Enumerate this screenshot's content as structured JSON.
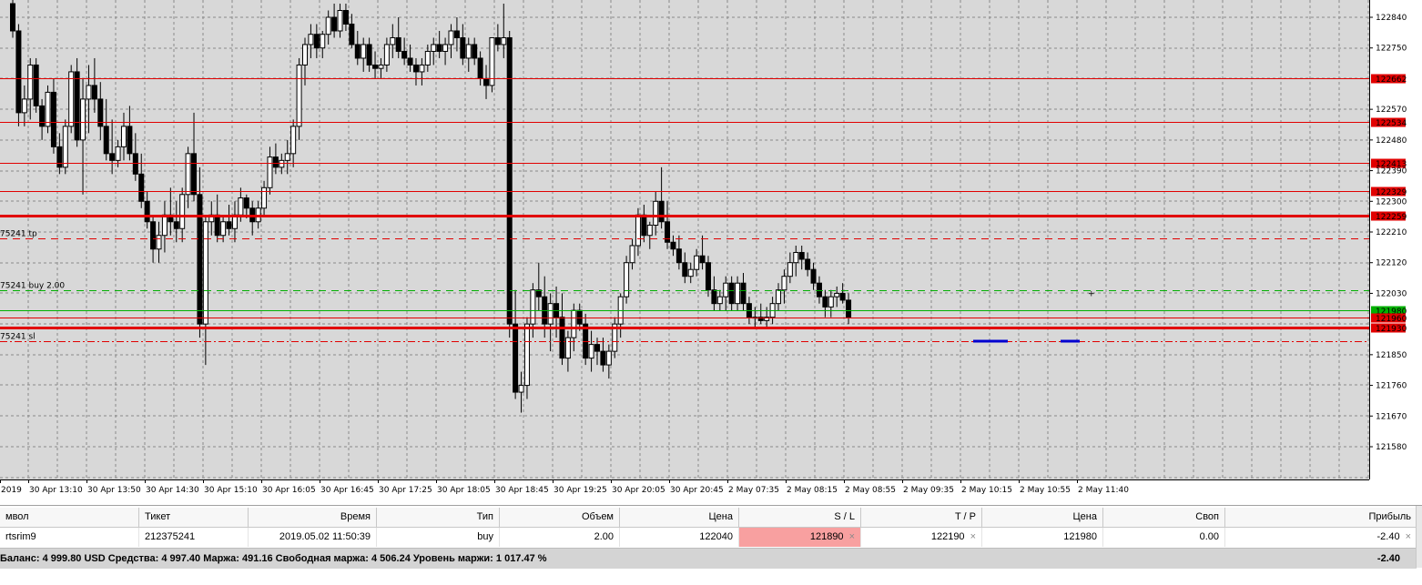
{
  "chart": {
    "background_color": "#d8d8d8",
    "price_axis_labels": [
      "122840",
      "122750",
      "122570",
      "122480",
      "122390",
      "122300",
      "122210",
      "122120",
      "122030",
      "121850",
      "121760",
      "121670",
      "121580"
    ],
    "hlines": [
      {
        "label": "122662",
        "color": "#e10000",
        "style": "solid",
        "weight": "thin",
        "price": 122662
      },
      {
        "label": "122534",
        "color": "#e10000",
        "style": "solid",
        "weight": "thin",
        "price": 122534
      },
      {
        "label": "122413",
        "color": "#e10000",
        "style": "solid",
        "weight": "thin",
        "price": 122413
      },
      {
        "label": "122329",
        "color": "#e10000",
        "style": "solid",
        "weight": "thin",
        "price": 122329
      },
      {
        "label": "122259",
        "color": "#e10000",
        "style": "solid",
        "weight": "thick",
        "price": 122259
      },
      {
        "label": "121980",
        "color": "#00b000",
        "style": "solid",
        "weight": "thin",
        "price": 121980
      },
      {
        "label": "121960",
        "color": "#e10000",
        "style": "solid",
        "weight": "thin",
        "price": 121960
      },
      {
        "label": "121930",
        "color": "#e10000",
        "style": "solid",
        "weight": "thick",
        "price": 121930
      }
    ],
    "order_lines": [
      {
        "text": "75241 tp",
        "color": "#e10000",
        "price": 122190
      },
      {
        "text": "75241 buy 2.00",
        "color": "#00b000",
        "price": 122040
      },
      {
        "text": "75241 sl",
        "color": "#e10000",
        "price": 121890
      }
    ],
    "time_labels": [
      "2019",
      "30 Apr 13:10",
      "30 Apr 13:50",
      "30 Apr 14:30",
      "30 Apr 15:10",
      "30 Apr 16:05",
      "30 Apr 16:45",
      "30 Apr 17:25",
      "30 Apr 18:05",
      "30 Apr 18:45",
      "30 Apr 19:25",
      "30 Apr 20:05",
      "30 Apr 20:45",
      "2 May 07:35",
      "2 May 08:15",
      "2 May 08:55",
      "2 May 09:35",
      "2 May 10:15",
      "2 May 10:55",
      "2 May 11:40"
    ],
    "candles": [
      [
        122880,
        122920,
        122780,
        122800
      ],
      [
        122800,
        122820,
        122520,
        122560
      ],
      [
        122560,
        122640,
        122520,
        122600
      ],
      [
        122600,
        122720,
        122540,
        122700
      ],
      [
        122700,
        122720,
        122560,
        122580
      ],
      [
        122580,
        122600,
        122480,
        122520
      ],
      [
        122520,
        122640,
        122500,
        122620
      ],
      [
        122620,
        122660,
        122440,
        122460
      ],
      [
        122460,
        122500,
        122380,
        122400
      ],
      [
        122400,
        122540,
        122380,
        122520
      ],
      [
        122520,
        122700,
        122500,
        122680
      ],
      [
        122680,
        122720,
        122460,
        122480
      ],
      [
        122480,
        122660,
        122320,
        122600
      ],
      [
        122600,
        122700,
        122500,
        122640
      ],
      [
        122640,
        122720,
        122560,
        122600
      ],
      [
        122600,
        122650,
        122480,
        122520
      ],
      [
        122520,
        122600,
        122420,
        122440
      ],
      [
        122440,
        122540,
        122380,
        122420
      ],
      [
        122420,
        122480,
        122400,
        122460
      ],
      [
        122460,
        122560,
        122420,
        122520
      ],
      [
        122520,
        122580,
        122420,
        122440
      ],
      [
        122440,
        122500,
        122360,
        122380
      ],
      [
        122380,
        122440,
        122280,
        122300
      ],
      [
        122300,
        122330,
        122220,
        122240
      ],
      [
        122240,
        122260,
        122120,
        122160
      ],
      [
        122160,
        122240,
        122120,
        122200
      ],
      [
        122200,
        122300,
        122150,
        122260
      ],
      [
        122260,
        122340,
        122200,
        122240
      ],
      [
        122240,
        122300,
        122180,
        122220
      ],
      [
        122220,
        122340,
        122180,
        122320
      ],
      [
        122320,
        122460,
        122280,
        122440
      ],
      [
        122440,
        122560,
        122300,
        122320
      ],
      [
        122320,
        122400,
        121900,
        121940
      ],
      [
        121940,
        122260,
        121820,
        122240
      ],
      [
        122240,
        122300,
        122200,
        122260
      ],
      [
        122260,
        122320,
        122180,
        122200
      ],
      [
        122200,
        122260,
        122180,
        122240
      ],
      [
        122240,
        122290,
        122200,
        122220
      ],
      [
        122220,
        122300,
        122180,
        122260
      ],
      [
        122260,
        122340,
        122240,
        122310
      ],
      [
        122310,
        122320,
        122250,
        122280
      ],
      [
        122280,
        122300,
        122200,
        122240
      ],
      [
        122240,
        122300,
        122220,
        122280
      ],
      [
        122280,
        122360,
        122260,
        122340
      ],
      [
        122340,
        122460,
        122320,
        122430
      ],
      [
        122430,
        122470,
        122380,
        122400
      ],
      [
        122400,
        122440,
        122380,
        122420
      ],
      [
        122420,
        122480,
        122380,
        122440
      ],
      [
        122440,
        122540,
        122400,
        122520
      ],
      [
        122520,
        122720,
        122480,
        122700
      ],
      [
        122700,
        122780,
        122640,
        122760
      ],
      [
        122760,
        122820,
        122720,
        122790
      ],
      [
        122790,
        122820,
        122720,
        122750
      ],
      [
        122750,
        122800,
        122720,
        122790
      ],
      [
        122790,
        122860,
        122760,
        122840
      ],
      [
        122840,
        122880,
        122780,
        122800
      ],
      [
        122800,
        122880,
        122780,
        122860
      ],
      [
        122860,
        122880,
        122800,
        122820
      ],
      [
        122820,
        122850,
        122750,
        122760
      ],
      [
        122760,
        122800,
        122700,
        122720
      ],
      [
        122720,
        122780,
        122680,
        122760
      ],
      [
        122760,
        122780,
        122680,
        122700
      ],
      [
        122700,
        122740,
        122660,
        122690
      ],
      [
        122690,
        122720,
        122660,
        122700
      ],
      [
        122700,
        122780,
        122680,
        122760
      ],
      [
        122760,
        122820,
        122720,
        122780
      ],
      [
        122780,
        122840,
        122720,
        122740
      ],
      [
        122740,
        122780,
        122700,
        122720
      ],
      [
        122720,
        122760,
        122680,
        122700
      ],
      [
        122700,
        122720,
        122640,
        122680
      ],
      [
        122680,
        122720,
        122640,
        122700
      ],
      [
        122700,
        122760,
        122680,
        122740
      ],
      [
        122740,
        122780,
        122700,
        122760
      ],
      [
        122760,
        122800,
        122720,
        122740
      ],
      [
        122740,
        122780,
        122700,
        122760
      ],
      [
        122760,
        122820,
        122720,
        122800
      ],
      [
        122800,
        122840,
        122740,
        122780
      ],
      [
        122780,
        122820,
        122700,
        122720
      ],
      [
        122720,
        122780,
        122680,
        122760
      ],
      [
        122760,
        122780,
        122700,
        122720
      ],
      [
        122720,
        122740,
        122640,
        122660
      ],
      [
        122660,
        122700,
        122600,
        122640
      ],
      [
        122640,
        122780,
        122620,
        122780
      ],
      [
        122780,
        122820,
        122740,
        122760
      ],
      [
        122760,
        122880,
        122720,
        122780
      ],
      [
        122780,
        122800,
        121900,
        121940
      ],
      [
        121940,
        122040,
        121720,
        121740
      ],
      [
        121740,
        121800,
        121680,
        121760
      ],
      [
        121760,
        121960,
        121720,
        121940
      ],
      [
        121940,
        122060,
        121900,
        122040
      ],
      [
        122040,
        122120,
        121980,
        122020
      ],
      [
        122020,
        122080,
        121900,
        121940
      ],
      [
        121940,
        122030,
        121860,
        122000
      ],
      [
        122000,
        122050,
        121900,
        121960
      ],
      [
        121960,
        122030,
        121820,
        121840
      ],
      [
        121840,
        121920,
        121800,
        121900
      ],
      [
        121900,
        122000,
        121860,
        121980
      ],
      [
        121980,
        122000,
        121920,
        121940
      ],
      [
        121940,
        121970,
        121820,
        121840
      ],
      [
        121840,
        121920,
        121800,
        121880
      ],
      [
        121880,
        121900,
        121820,
        121860
      ],
      [
        121860,
        121900,
        121800,
        121820
      ],
      [
        121820,
        121880,
        121780,
        121860
      ],
      [
        121860,
        121960,
        121840,
        121940
      ],
      [
        121940,
        122030,
        121900,
        122020
      ],
      [
        122020,
        122140,
        122000,
        122120
      ],
      [
        122120,
        122190,
        122100,
        122170
      ],
      [
        122170,
        122280,
        122140,
        122260
      ],
      [
        122260,
        122290,
        122180,
        122200
      ],
      [
        122200,
        122240,
        122160,
        122230
      ],
      [
        122230,
        122330,
        122200,
        122300
      ],
      [
        122300,
        122400,
        122220,
        122240
      ],
      [
        122240,
        122300,
        122160,
        122180
      ],
      [
        122180,
        122200,
        122140,
        122160
      ],
      [
        122160,
        122200,
        122100,
        122120
      ],
      [
        122120,
        122150,
        122060,
        122080
      ],
      [
        122080,
        122120,
        122060,
        122100
      ],
      [
        122100,
        122160,
        122080,
        122140
      ],
      [
        122140,
        122200,
        122100,
        122120
      ],
      [
        122120,
        122140,
        122020,
        122040
      ],
      [
        122040,
        122080,
        121980,
        122000
      ],
      [
        122000,
        122040,
        121980,
        122020
      ],
      [
        122020,
        122080,
        121980,
        122060
      ],
      [
        122060,
        122080,
        121980,
        122000
      ],
      [
        122000,
        122080,
        121980,
        122060
      ],
      [
        122060,
        122090,
        121980,
        122000
      ],
      [
        122000,
        122020,
        121940,
        121960
      ],
      [
        121960,
        121990,
        121930,
        121960
      ],
      [
        121960,
        122000,
        121940,
        121950
      ],
      [
        121950,
        121990,
        121930,
        121960
      ],
      [
        121960,
        122020,
        121940,
        122000
      ],
      [
        122000,
        122060,
        121980,
        122040
      ],
      [
        122040,
        122100,
        122000,
        122080
      ],
      [
        122080,
        122150,
        122060,
        122120
      ],
      [
        122120,
        122170,
        122080,
        122150
      ],
      [
        122150,
        122170,
        122100,
        122130
      ],
      [
        122130,
        122150,
        122080,
        122100
      ],
      [
        122100,
        122120,
        122040,
        122060
      ],
      [
        122060,
        122080,
        122000,
        122020
      ],
      [
        122020,
        122040,
        121960,
        121990
      ],
      [
        121990,
        122040,
        121960,
        122020
      ],
      [
        122020,
        122050,
        121990,
        122030
      ],
      [
        122030,
        122060,
        122000,
        122010
      ],
      [
        122010,
        122030,
        121940,
        121960
      ]
    ],
    "grid_color": "#8a8a8a",
    "blue_marks_color": "#0000d0"
  },
  "terminal": {
    "headers": [
      "мвол",
      "Тикет",
      "Время",
      "Тип",
      "Объем",
      "Цена",
      "S / L",
      "T / P",
      "Цена",
      "Своп",
      "Прибыль"
    ],
    "position": {
      "symbol": "rtsrim9",
      "ticket": "212375241",
      "time": "2019.05.02 11:50:39",
      "type": "buy",
      "volume": "2.00",
      "price": "122040",
      "sl": "121890",
      "tp": "122190",
      "current_price": "121980",
      "swap": "0.00",
      "profit": "-2.40",
      "close_mark": "×"
    },
    "balance_text": "Баланс: 4 999.80 USD  Средства: 4 997.40  Маржа: 491.16  Свободная маржа: 4 506.24  Уровень маржи: 1 017.47 %",
    "total": "-2.40"
  }
}
